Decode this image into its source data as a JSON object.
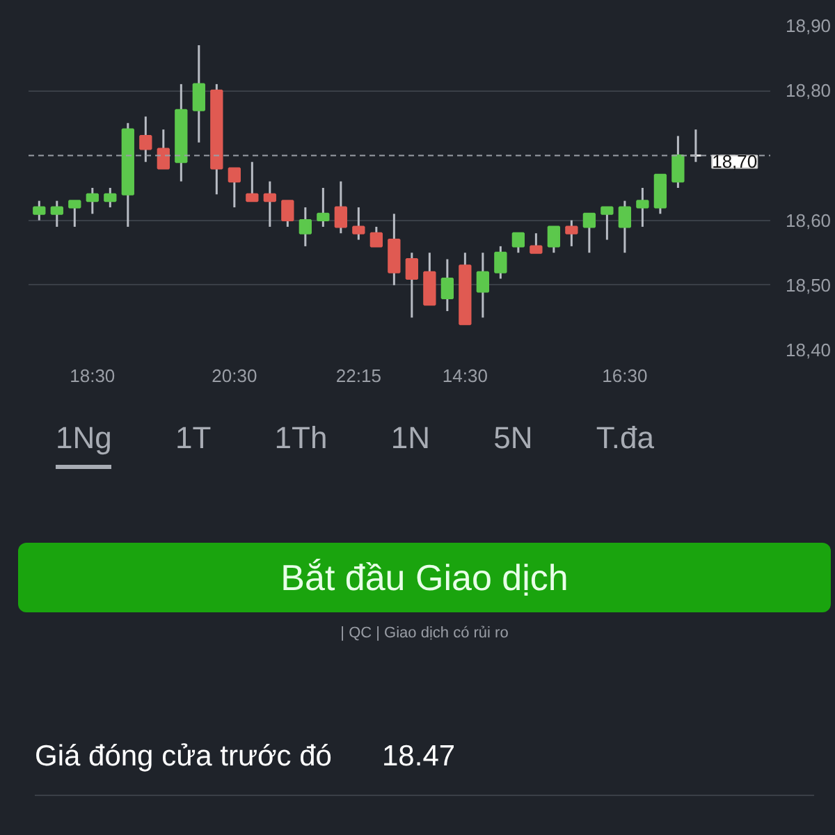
{
  "chart_data": {
    "type": "candlestick",
    "categories": [
      null,
      null,
      null,
      "18:30",
      null,
      null,
      null,
      null,
      null,
      null,
      null,
      "20:30",
      null,
      null,
      null,
      null,
      null,
      null,
      "22:15",
      null,
      null,
      null,
      null,
      null,
      "14:30",
      null,
      null,
      null,
      null,
      null,
      null,
      null,
      null,
      "16:30",
      null,
      null,
      null,
      null
    ],
    "ohlc": [
      [
        18.61,
        18.63,
        18.6,
        18.62
      ],
      [
        18.61,
        18.63,
        18.59,
        18.62
      ],
      [
        18.62,
        18.63,
        18.59,
        18.63
      ],
      [
        18.63,
        18.65,
        18.61,
        18.64
      ],
      [
        18.63,
        18.65,
        18.62,
        18.64
      ],
      [
        18.64,
        18.75,
        18.59,
        18.74
      ],
      [
        18.73,
        18.76,
        18.69,
        18.71
      ],
      [
        18.71,
        18.74,
        18.68,
        18.68
      ],
      [
        18.69,
        18.81,
        18.66,
        18.77
      ],
      [
        18.77,
        18.87,
        18.72,
        18.81
      ],
      [
        18.8,
        18.81,
        18.64,
        18.68
      ],
      [
        18.68,
        18.68,
        18.62,
        18.66
      ],
      [
        18.64,
        18.69,
        18.63,
        18.63
      ],
      [
        18.64,
        18.66,
        18.59,
        18.63
      ],
      [
        18.63,
        18.63,
        18.59,
        18.6
      ],
      [
        18.58,
        18.62,
        18.56,
        18.6
      ],
      [
        18.6,
        18.65,
        18.59,
        18.61
      ],
      [
        18.62,
        18.66,
        18.58,
        18.59
      ],
      [
        18.59,
        18.62,
        18.57,
        18.58
      ],
      [
        18.58,
        18.59,
        18.56,
        18.56
      ],
      [
        18.57,
        18.61,
        18.5,
        18.52
      ],
      [
        18.54,
        18.55,
        18.45,
        18.51
      ],
      [
        18.52,
        18.55,
        18.47,
        18.47
      ],
      [
        18.48,
        18.54,
        18.46,
        18.51
      ],
      [
        18.53,
        18.55,
        18.44,
        18.44
      ],
      [
        18.49,
        18.55,
        18.45,
        18.52
      ],
      [
        18.52,
        18.56,
        18.51,
        18.55
      ],
      [
        18.56,
        18.58,
        18.55,
        18.58
      ],
      [
        18.56,
        18.58,
        18.55,
        18.55
      ],
      [
        18.56,
        18.59,
        18.55,
        18.59
      ],
      [
        18.59,
        18.6,
        18.56,
        18.58
      ],
      [
        18.59,
        18.61,
        18.55,
        18.61
      ],
      [
        18.61,
        18.62,
        18.57,
        18.62
      ],
      [
        18.59,
        18.63,
        18.55,
        18.62
      ],
      [
        18.62,
        18.65,
        18.59,
        18.63
      ],
      [
        18.62,
        18.67,
        18.61,
        18.67
      ],
      [
        18.66,
        18.73,
        18.65,
        18.7
      ],
      [
        18.7,
        18.74,
        18.69,
        18.7
      ]
    ],
    "colors": [
      "#5cc84c",
      "#5cc84c",
      "#5cc84c",
      "#5cc84c",
      "#5cc84c",
      "#5cc84c",
      "#e05a52",
      "#e05a52",
      "#5cc84c",
      "#5cc84c",
      "#e05a52",
      "#e05a52",
      "#e05a52",
      "#e05a52",
      "#e05a52",
      "#5cc84c",
      "#5cc84c",
      "#e05a52",
      "#e05a52",
      "#e05a52",
      "#e05a52",
      "#e05a52",
      "#e05a52",
      "#5cc84c",
      "#e05a52",
      "#5cc84c",
      "#5cc84c",
      "#5cc84c",
      "#e05a52",
      "#5cc84c",
      "#e05a52",
      "#5cc84c",
      "#5cc84c",
      "#5cc84c",
      "#5cc84c",
      "#5cc84c",
      "#5cc84c",
      "#e0e0e0"
    ],
    "ylim": [
      18.4,
      18.9
    ],
    "yticks": [
      {
        "value": 18.4,
        "label": "18,40"
      },
      {
        "value": 18.5,
        "label": "18,50"
      },
      {
        "value": 18.6,
        "label": "18,60"
      },
      {
        "value": 18.8,
        "label": "18,80"
      },
      {
        "value": 18.9,
        "label": "18,90"
      }
    ],
    "grid": "y",
    "ref_lines": [
      {
        "axis": "y",
        "value": 18.7,
        "label": "18,70",
        "line_style": "dashed",
        "color": "#9a9ea6"
      }
    ],
    "annotations": [
      "1Ng",
      "1T",
      "1Th",
      "1N",
      "5N",
      "T.đa",
      "Bắt đầu Giao dịch",
      "| QC | Giao dịch có rủi ro",
      "Giá đóng cửa trước đó",
      "18.47"
    ]
  }
}
